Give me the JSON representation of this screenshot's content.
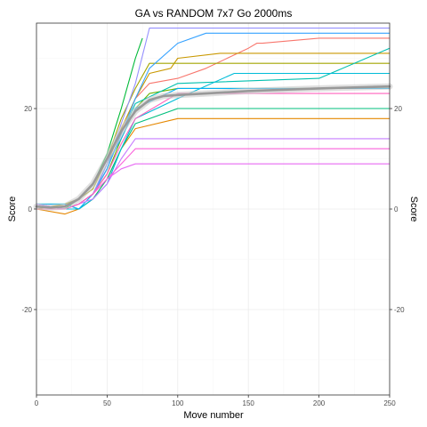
{
  "chart_data": {
    "type": "line",
    "title": "GA vs RANDOM 7x7 Go 2000ms",
    "xlabel": "Move number",
    "ylabel": "Score",
    "ylabel_right": "Score",
    "xlim": [
      0,
      250
    ],
    "ylim": [
      -37,
      37
    ],
    "x_ticks": [
      0,
      50,
      100,
      150,
      200,
      250
    ],
    "y_ticks": [
      -20,
      0,
      20
    ],
    "grid": true,
    "legend": "none",
    "series": [
      {
        "color": "#F8766D",
        "x": [
          0,
          20,
          30,
          40,
          50,
          60,
          70,
          80,
          100,
          120,
          150,
          156,
          160,
          200,
          250
        ],
        "y": [
          1,
          0,
          1,
          3,
          8,
          15,
          22,
          25,
          26,
          28,
          32,
          33,
          33,
          34,
          34
        ]
      },
      {
        "color": "#E58700",
        "x": [
          0,
          20,
          30,
          40,
          50,
          60,
          70,
          100,
          140,
          250
        ],
        "y": [
          0,
          -1,
          0,
          2,
          6,
          12,
          16,
          18,
          18,
          18
        ]
      },
      {
        "color": "#C99800",
        "x": [
          0,
          20,
          30,
          40,
          50,
          60,
          70,
          80,
          95,
          100,
          130,
          250
        ],
        "y": [
          0,
          0,
          1,
          3,
          9,
          16,
          22,
          27,
          28,
          30,
          31,
          31
        ]
      },
      {
        "color": "#A3A500",
        "x": [
          0,
          20,
          30,
          40,
          50,
          60,
          70,
          80,
          250
        ],
        "y": [
          0,
          1,
          2,
          4,
          10,
          18,
          24,
          29,
          29
        ]
      },
      {
        "color": "#6BB100",
        "x": [
          0,
          20,
          30,
          40,
          50,
          60,
          70,
          80,
          100,
          250
        ],
        "y": [
          1,
          0,
          1,
          3,
          7,
          14,
          20,
          23,
          24,
          24
        ]
      },
      {
        "color": "#00BA38",
        "x": [
          0,
          20,
          30,
          40,
          50,
          60,
          70,
          75
        ],
        "y": [
          0,
          0,
          2,
          5,
          11,
          20,
          30,
          34
        ]
      },
      {
        "color": "#00BF7D",
        "x": [
          0,
          20,
          30,
          40,
          50,
          60,
          70,
          100,
          250
        ],
        "y": [
          1,
          1,
          0,
          2,
          6,
          12,
          17,
          20,
          20
        ]
      },
      {
        "color": "#00C0AF",
        "x": [
          0,
          20,
          30,
          40,
          50,
          60,
          70,
          100,
          200,
          250
        ],
        "y": [
          1,
          0,
          1,
          3,
          8,
          15,
          21,
          25,
          26,
          32
        ]
      },
      {
        "color": "#00BCD8",
        "x": [
          0,
          20,
          30,
          40,
          50,
          60,
          70,
          100,
          140,
          250
        ],
        "y": [
          1,
          0,
          0,
          2,
          5,
          12,
          18,
          22,
          27,
          27
        ]
      },
      {
        "color": "#00B0F6",
        "x": [
          0,
          20,
          30,
          40,
          50,
          60,
          70,
          100,
          250
        ],
        "y": [
          1,
          1,
          0,
          3,
          9,
          14,
          20,
          24,
          24
        ]
      },
      {
        "color": "#35A2FF",
        "x": [
          0,
          20,
          30,
          40,
          50,
          60,
          70,
          80,
          100,
          120,
          250
        ],
        "y": [
          1,
          0,
          1,
          3,
          8,
          15,
          22,
          28,
          33,
          35,
          35
        ]
      },
      {
        "color": "#9590FF",
        "x": [
          0,
          20,
          30,
          40,
          50,
          60,
          70,
          80,
          250
        ],
        "y": [
          1,
          0,
          1,
          3,
          9,
          17,
          25,
          36,
          36
        ]
      },
      {
        "color": "#C77CFF",
        "x": [
          0,
          20,
          30,
          40,
          50,
          60,
          70,
          250
        ],
        "y": [
          1,
          0,
          1,
          2,
          5,
          10,
          14,
          14
        ]
      },
      {
        "color": "#E76BF3",
        "x": [
          0,
          20,
          30,
          40,
          50,
          60,
          70,
          250
        ],
        "y": [
          0,
          0,
          1,
          3,
          6,
          8,
          9,
          9
        ]
      },
      {
        "color": "#FA62DB",
        "x": [
          0,
          20,
          30,
          40,
          50,
          60,
          70,
          250
        ],
        "y": [
          0,
          0,
          1,
          3,
          6,
          9,
          12,
          12
        ]
      },
      {
        "color": "#FF62BC",
        "x": [
          0,
          20,
          30,
          40,
          50,
          60,
          70,
          100,
          250
        ],
        "y": [
          0,
          0,
          1,
          3,
          7,
          13,
          18,
          23,
          23
        ]
      }
    ],
    "smooth": {
      "color": "#999999",
      "x": [
        0,
        10,
        20,
        30,
        40,
        50,
        60,
        70,
        80,
        90,
        100,
        120,
        150,
        200,
        250
      ],
      "y": [
        0.5,
        0.3,
        0.5,
        2,
        5,
        10,
        15.5,
        19.5,
        21.7,
        22.5,
        22.7,
        23,
        23.5,
        24,
        24.4
      ]
    }
  }
}
